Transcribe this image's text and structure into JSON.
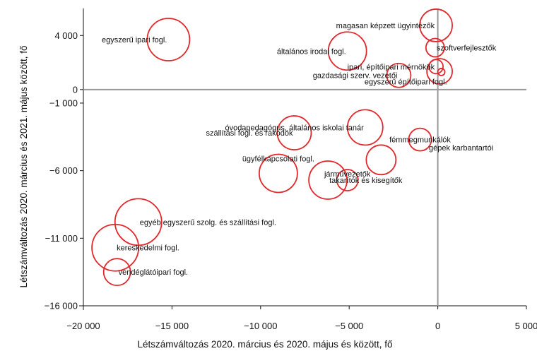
{
  "chart_data": {
    "type": "scatter",
    "title": "",
    "xlabel": "Létszámváltozás  2020. március és 2020. május és között, fő",
    "ylabel": "Létszámváltozás  2020. március és 2021. május  között, fő",
    "xlim": [
      -20000,
      5000
    ],
    "ylim": [
      -16000,
      6000
    ],
    "x_ticks": [
      {
        "value": -20000,
        "label": "−20 000"
      },
      {
        "value": -15000,
        "label": "−15 000"
      },
      {
        "value": -10000,
        "label": "−10 000"
      },
      {
        "value": -5000,
        "label": "−5 000"
      },
      {
        "value": 0,
        "label": "0"
      },
      {
        "value": 5000,
        "label": "5 000"
      }
    ],
    "y_ticks": [
      {
        "value": 4000,
        "label": "4 000"
      },
      {
        "value": 0,
        "label": "0"
      },
      {
        "value": -1000,
        "label": "−1 000"
      },
      {
        "value": -6000,
        "label": "−6 000"
      },
      {
        "value": -11000,
        "label": "−11 000"
      },
      {
        "value": -16000,
        "label": "−16 000"
      }
    ],
    "zero_lines": true,
    "grid": false,
    "legend": "none",
    "bubble_color": "#e3282b",
    "axis_color": "#999999",
    "points": [
      {
        "label": "egyszerű ipari fogl.",
        "x": -15200,
        "y": 3700,
        "size": 30,
        "label_pos": "left"
      },
      {
        "label": "magasan képzett ügyintézők",
        "x": -100,
        "y": 4750,
        "size": 23,
        "label_pos": "left"
      },
      {
        "label": "általános irodai fogl.",
        "x": -5100,
        "y": 2850,
        "size": 27,
        "label_pos": "left"
      },
      {
        "label": "szoftverfejlesztők",
        "x": -150,
        "y": 3100,
        "size": 13,
        "label_pos": "right"
      },
      {
        "label": "ipari, építőipari mérnökök",
        "x": -100,
        "y": 1700,
        "size": 10,
        "label_pos": "left"
      },
      {
        "label": "gazdasági szerv. vezetői",
        "x": -2200,
        "y": 1050,
        "size": 17,
        "label_pos": "left"
      },
      {
        "label": "",
        "x": 100,
        "y": 1350,
        "size": 18,
        "label_pos": "none"
      },
      {
        "label": "",
        "x": 200,
        "y": 1300,
        "size": 5,
        "label_pos": "none"
      },
      {
        "label": "egyszerű építőipari fogl.",
        "x": 600,
        "y": 600,
        "size": 0,
        "label_pos": "left"
      },
      {
        "label": "óvodapedagógus, általános iskolai tanár",
        "x": -4100,
        "y": -2800,
        "size": 25,
        "label_pos": "left"
      },
      {
        "label": "szállítási fogl. és rakodók",
        "x": -8100,
        "y": -3200,
        "size": 24,
        "label_pos": "left"
      },
      {
        "label": "fémmegmunkálók",
        "x": -1000,
        "y": -3700,
        "size": 16,
        "label_pos": "below"
      },
      {
        "label": "gépek karbantartói",
        "x": -500,
        "y": -4300,
        "size": 0,
        "label_pos": "right"
      },
      {
        "label": "",
        "x": -3200,
        "y": -5200,
        "size": 21,
        "label_pos": "none"
      },
      {
        "label": "ügyfélkapcsolati fogl.",
        "x": -9000,
        "y": -6200,
        "size": 27,
        "label_pos": "above"
      },
      {
        "label": "takarítók és kisegítők",
        "x": -6200,
        "y": -6700,
        "size": 27,
        "label_pos": "right"
      },
      {
        "label": "járművezetők",
        "x": -5100,
        "y": -6700,
        "size": 15,
        "label_pos": "above"
      },
      {
        "label": "egyéb egyszerű szolg. és szállítási fogl.",
        "x": -16900,
        "y": -9800,
        "size": 33,
        "label_pos": "right"
      },
      {
        "label": "kereskedelmi fogl.",
        "x": -18200,
        "y": -11700,
        "size": 33,
        "label_pos": "right"
      },
      {
        "label": "vendéglátóipari fogl.",
        "x": -18100,
        "y": -13500,
        "size": 19,
        "label_pos": "right"
      }
    ]
  }
}
